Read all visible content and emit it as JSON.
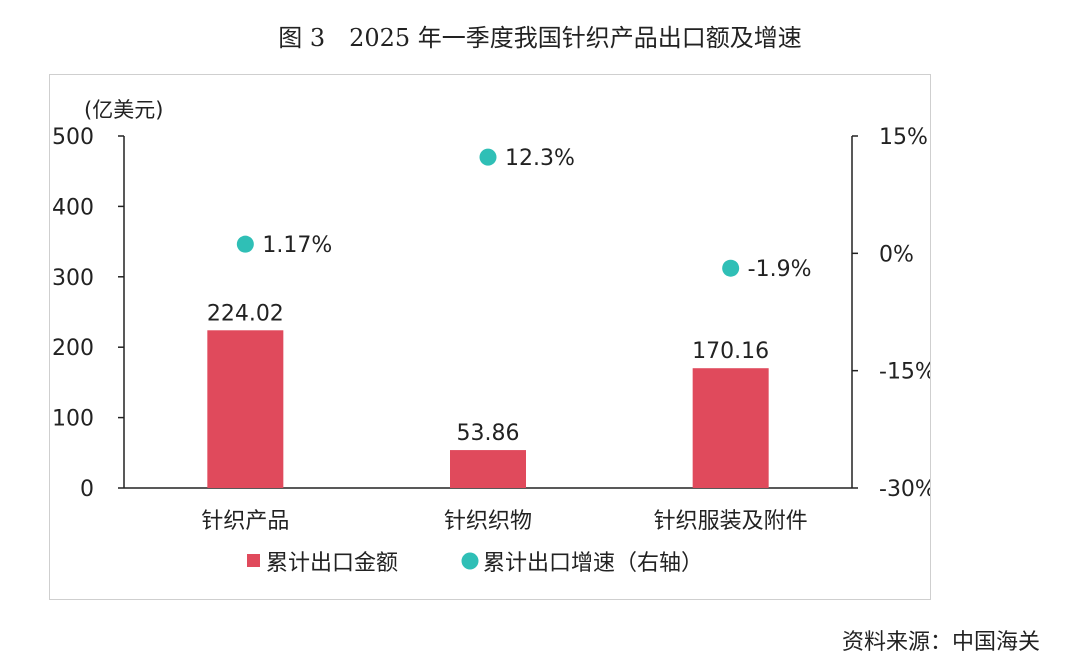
{
  "title": "图 3　2025 年一季度我国针织产品出口额及增速",
  "source": "资料来源：中国海关",
  "colors": {
    "bar": "#e04a5c",
    "dot": "#2fbfb6",
    "axis": "#222222"
  },
  "chart_data": {
    "type": "bar",
    "categories": [
      "针织产品",
      "针织织物",
      "针织服装及附件"
    ],
    "y_unit_label": "(亿美元)",
    "ylim": [
      0,
      500
    ],
    "yticks": [
      "0",
      "100",
      "200",
      "300",
      "400",
      "500"
    ],
    "y2lim": [
      -30,
      15
    ],
    "y2ticks": [
      "-30%",
      "-15%",
      "0%",
      "15%"
    ],
    "series": [
      {
        "name": "累计出口金额",
        "type": "bar",
        "axis": "left",
        "values": [
          224.02,
          53.86,
          170.16
        ],
        "labels": [
          "224.02",
          "53.86",
          "170.16"
        ]
      },
      {
        "name": "累计出口增速（右轴）",
        "type": "scatter",
        "axis": "right",
        "values": [
          1.17,
          12.3,
          -1.9
        ],
        "labels": [
          "1.17%",
          "12.3%",
          "-1.9%"
        ]
      }
    ],
    "legend": "bottom"
  }
}
